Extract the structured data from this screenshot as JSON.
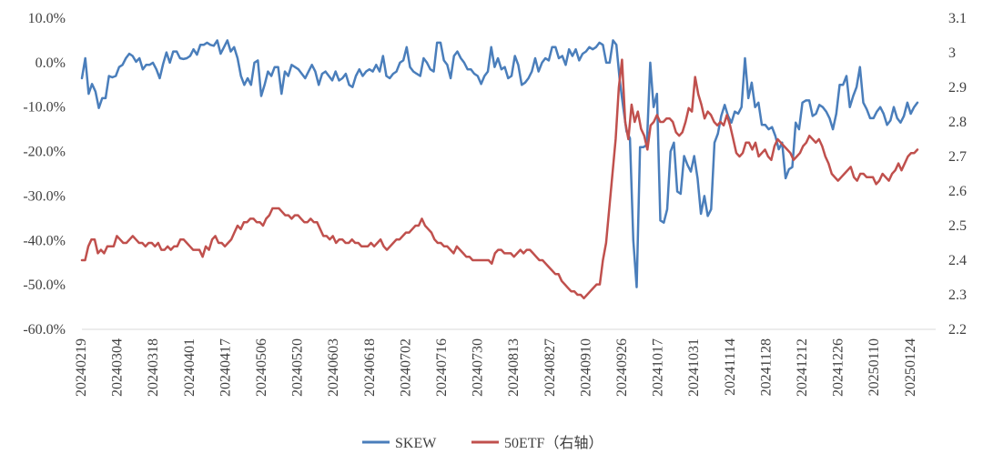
{
  "chart_data": {
    "type": "line",
    "title": "",
    "xlabel": "",
    "ylabel": "",
    "x_tick_labels": [
      "20240219",
      "20240304",
      "20240318",
      "20240401",
      "20240417",
      "20240506",
      "20240520",
      "20240603",
      "20240618",
      "20240702",
      "20240716",
      "20240730",
      "20240813",
      "20240827",
      "20240910",
      "20240926",
      "20241017",
      "20241031",
      "20241114",
      "20241128",
      "20241212",
      "20241226",
      "20250110",
      "20250124"
    ],
    "y_left": {
      "ticks": [
        "10.0%",
        "0.0%",
        "-10.0%",
        "-20.0%",
        "-30.0%",
        "-40.0%",
        "-50.0%",
        "-60.0%"
      ],
      "range": [
        -60,
        10
      ],
      "unit": "%"
    },
    "y_right": {
      "ticks": [
        "3.1",
        "3",
        "2.9",
        "2.8",
        "2.7",
        "2.6",
        "2.5",
        "2.4",
        "2.3",
        "2.2"
      ],
      "range": [
        2.2,
        3.1
      ]
    },
    "grid": false,
    "legend_position": "bottom",
    "series": [
      {
        "name": "SKEW",
        "axis": "left",
        "color": "#4a7ebb",
        "values": [
          -3.5,
          1.0,
          -7.0,
          -4.8,
          -6.5,
          -10.2,
          -8.0,
          -8.0,
          -3.0,
          -3.3,
          -3.0,
          -1.0,
          -0.5,
          1.0,
          2.0,
          1.5,
          0.2,
          1.0,
          -1.5,
          -0.5,
          -0.5,
          0.0,
          -1.5,
          -3.5,
          -0.3,
          2.3,
          0.0,
          2.5,
          2.5,
          1.0,
          0.8,
          1.0,
          1.5,
          3.0,
          1.8,
          4.0,
          4.0,
          4.5,
          4.0,
          3.8,
          5.0,
          2.0,
          3.5,
          5.0,
          2.5,
          3.5,
          1.0,
          -3.0,
          -5.0,
          -3.5,
          -5.0,
          0.0,
          0.5,
          -7.5,
          -5.0,
          -2.0,
          -3.0,
          -1.0,
          -1.0,
          -7.0,
          -2.0,
          -3.0,
          -0.5,
          -1.0,
          -1.5,
          -2.5,
          -3.5,
          -2.0,
          -0.5,
          -2.0,
          -5.0,
          -2.5,
          -2.0,
          -3.0,
          -4.0,
          -2.0,
          -4.0,
          -3.5,
          -2.5,
          -5.0,
          -5.5,
          -3.0,
          -1.5,
          -3.0,
          -2.0,
          -1.5,
          -2.0,
          -0.5,
          -2.0,
          1.5,
          -3.0,
          -3.5,
          -2.5,
          -2.0,
          0.0,
          0.5,
          3.5,
          -1.0,
          -2.0,
          -2.5,
          -3.0,
          1.0,
          0.0,
          -1.5,
          -2.0,
          4.5,
          4.5,
          0.5,
          -0.5,
          -3.5,
          1.5,
          2.5,
          1.0,
          0.0,
          -1.5,
          -1.5,
          -2.5,
          -3.0,
          -4.8,
          -3.0,
          -2.0,
          3.5,
          -1.0,
          1.0,
          -1.5,
          -1.0,
          -3.5,
          -3.0,
          1.5,
          -0.5,
          -5.0,
          -4.5,
          -3.5,
          -2.0,
          1.0,
          -2.0,
          0.0,
          1.0,
          0.5,
          3.5,
          3.5,
          1.0,
          1.5,
          -0.5,
          3.0,
          1.5,
          3.0,
          0.5,
          2.0,
          2.5,
          3.5,
          3.0,
          3.5,
          4.5,
          4.0,
          0.0,
          0.0,
          5.0,
          4.0,
          -4.0,
          -10.0,
          -15.5,
          -17.0,
          -40.0,
          -50.5,
          -19.0,
          -19.0,
          -18.5,
          0.0,
          -10.0,
          -7.0,
          -35.5,
          -36.0,
          -33.0,
          -20.0,
          -18.0,
          -29.0,
          -29.5,
          -21.0,
          -23.0,
          -24.5,
          -21.0,
          -26.0,
          -34.0,
          -30.0,
          -34.5,
          -33.0,
          -18.0,
          -16.0,
          -12.0,
          -9.5,
          -12.0,
          -13.5,
          -11.0,
          -11.5,
          -10.0,
          1.0,
          -8.0,
          -4.5,
          -10.0,
          -9.0,
          -14.0,
          -14.0,
          -15.0,
          -14.5,
          -16.5,
          -19.5,
          -18.0,
          -26.0,
          -24.0,
          -23.5,
          -13.5,
          -15.0,
          -9.0,
          -8.5,
          -8.5,
          -12.0,
          -11.5,
          -9.5,
          -10.0,
          -11.0,
          -12.5,
          -15.0,
          -11.5,
          -5.0,
          -5.0,
          -3.0,
          -10.0,
          -7.5,
          -5.5,
          -1.0,
          -9.0,
          -10.5,
          -12.5,
          -12.5,
          -11.0,
          -10.0,
          -11.5,
          -14.0,
          -13.0,
          -10.0,
          -12.5,
          -13.5,
          -12.0,
          -9.0,
          -11.5,
          -10.0,
          -9.0
        ]
      },
      {
        "name": "50ETF（右轴）",
        "axis": "right",
        "color": "#c0504d",
        "values": [
          2.4,
          2.4,
          2.44,
          2.46,
          2.46,
          2.42,
          2.43,
          2.42,
          2.44,
          2.44,
          2.44,
          2.47,
          2.46,
          2.45,
          2.45,
          2.46,
          2.47,
          2.46,
          2.45,
          2.45,
          2.44,
          2.45,
          2.45,
          2.44,
          2.45,
          2.43,
          2.43,
          2.44,
          2.43,
          2.44,
          2.44,
          2.46,
          2.46,
          2.45,
          2.44,
          2.43,
          2.43,
          2.43,
          2.41,
          2.44,
          2.43,
          2.46,
          2.47,
          2.45,
          2.45,
          2.44,
          2.45,
          2.46,
          2.48,
          2.5,
          2.49,
          2.51,
          2.51,
          2.52,
          2.52,
          2.51,
          2.51,
          2.5,
          2.52,
          2.53,
          2.55,
          2.55,
          2.55,
          2.54,
          2.53,
          2.53,
          2.52,
          2.53,
          2.53,
          2.52,
          2.51,
          2.51,
          2.52,
          2.51,
          2.51,
          2.49,
          2.47,
          2.47,
          2.46,
          2.47,
          2.45,
          2.46,
          2.46,
          2.45,
          2.45,
          2.46,
          2.45,
          2.45,
          2.44,
          2.44,
          2.44,
          2.45,
          2.44,
          2.45,
          2.46,
          2.44,
          2.43,
          2.44,
          2.45,
          2.46,
          2.46,
          2.47,
          2.48,
          2.48,
          2.49,
          2.5,
          2.5,
          2.52,
          2.5,
          2.49,
          2.48,
          2.46,
          2.45,
          2.45,
          2.44,
          2.44,
          2.43,
          2.42,
          2.44,
          2.43,
          2.42,
          2.41,
          2.41,
          2.4,
          2.4,
          2.4,
          2.4,
          2.4,
          2.4,
          2.39,
          2.42,
          2.43,
          2.43,
          2.42,
          2.42,
          2.42,
          2.41,
          2.42,
          2.43,
          2.42,
          2.43,
          2.43,
          2.42,
          2.41,
          2.4,
          2.4,
          2.39,
          2.38,
          2.37,
          2.36,
          2.36,
          2.34,
          2.33,
          2.32,
          2.31,
          2.31,
          2.3,
          2.3,
          2.29,
          2.3,
          2.31,
          2.32,
          2.33,
          2.33,
          2.4,
          2.45,
          2.55,
          2.65,
          2.75,
          2.9,
          2.98,
          2.8,
          2.75,
          2.85,
          2.8,
          2.83,
          2.78,
          2.76,
          2.72,
          2.79,
          2.8,
          2.82,
          2.8,
          2.8,
          2.81,
          2.81,
          2.8,
          2.77,
          2.76,
          2.77,
          2.8,
          2.84,
          2.83,
          2.93,
          2.88,
          2.85,
          2.81,
          2.83,
          2.82,
          2.8,
          2.79,
          2.8,
          2.79,
          2.82,
          2.79,
          2.75,
          2.71,
          2.7,
          2.71,
          2.74,
          2.74,
          2.72,
          2.74,
          2.7,
          2.71,
          2.72,
          2.7,
          2.69,
          2.73,
          2.75,
          2.74,
          2.73,
          2.72,
          2.71,
          2.69,
          2.7,
          2.71,
          2.73,
          2.74,
          2.76,
          2.75,
          2.74,
          2.75,
          2.73,
          2.7,
          2.68,
          2.65,
          2.64,
          2.63,
          2.64,
          2.65,
          2.66,
          2.67,
          2.64,
          2.63,
          2.65,
          2.65,
          2.64,
          2.64,
          2.64,
          2.62,
          2.63,
          2.65,
          2.64,
          2.63,
          2.65,
          2.66,
          2.68,
          2.66,
          2.68,
          2.7,
          2.71,
          2.71,
          2.72
        ]
      }
    ]
  }
}
